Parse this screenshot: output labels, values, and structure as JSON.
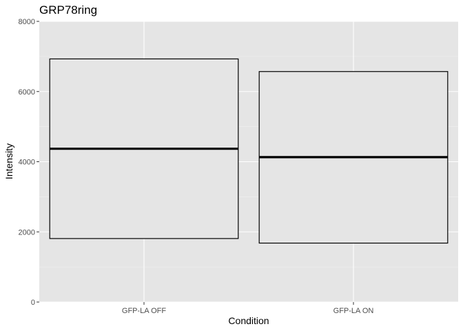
{
  "chart_data": {
    "type": "boxplot",
    "title": "GRP78ring",
    "xlabel": "Condition",
    "ylabel": "Intensity",
    "categories": [
      "GFP-LA OFF",
      "GFP-LA ON"
    ],
    "boxes": [
      {
        "category": "GFP-LA OFF",
        "q1": 1810,
        "median": 4370,
        "q3": 6930
      },
      {
        "category": "GFP-LA ON",
        "q1": 1680,
        "median": 4130,
        "q3": 6570
      }
    ],
    "ylim": [
      0,
      8000
    ],
    "yticks": [
      0,
      2000,
      4000,
      6000,
      8000
    ],
    "ytick_labels": [
      "0",
      "2000",
      "4000",
      "6000",
      "8000"
    ],
    "grid": true,
    "colors": {
      "panel_bg": "#e5e5e5",
      "grid_major": "#ffffff",
      "grid_minor": "#f2f2f2",
      "box_fill": "#e5e5e5",
      "box_stroke": "#000000"
    }
  }
}
